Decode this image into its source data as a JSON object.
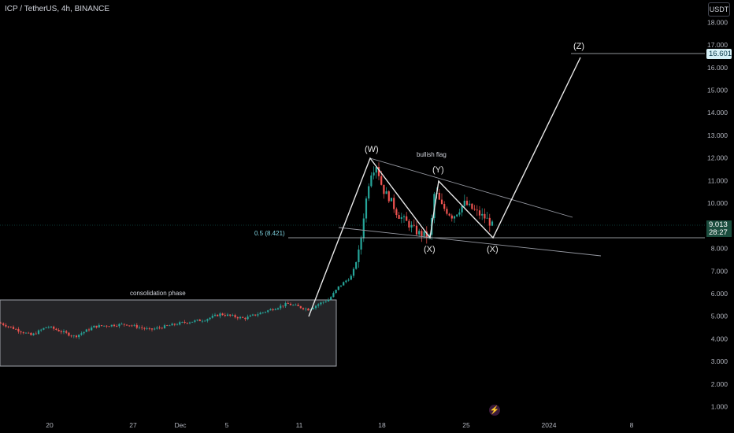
{
  "header": {
    "title": "ICP / TetherUS, 4h, BINANCE",
    "currency_button": "USDT"
  },
  "badges": {
    "target_price": "16.601",
    "last_price": "9.013",
    "countdown": "28:27"
  },
  "colors": {
    "background": "#000000",
    "candle_up": "#26a69a",
    "candle_down": "#ef5350",
    "drawing": "#d1d4dc",
    "fib_label": "#7fd3e0",
    "target_badge": "#d6f0f6",
    "price_badge": "#1b4d3e"
  },
  "chart_data": {
    "type": "candlestick",
    "symbol": "ICP / TetherUS",
    "timeframe": "4h",
    "exchange": "BINANCE",
    "y_ticks": [
      "1.000",
      "2.000",
      "3.000",
      "4.000",
      "5.000",
      "6.000",
      "7.000",
      "8.000",
      "9.000",
      "10.000",
      "11.000",
      "12.000",
      "13.000",
      "14.000",
      "15.000",
      "16.000",
      "17.000",
      "18.000"
    ],
    "x_ticks": [
      "20",
      "27",
      "Dec",
      "5",
      "11",
      "18",
      "25",
      "2024",
      "8"
    ],
    "ylim": [
      0.5,
      18.6
    ],
    "annotations": {
      "consolidation_label": "consolidation phase",
      "bullish_flag_label": "bullish flag",
      "fib_label": "0.5 (8.421)",
      "wave_w": "(W)",
      "wave_x1": "(X)",
      "wave_y": "(Y)",
      "wave_x2": "(X)",
      "wave_z": "(Z)"
    },
    "levels": {
      "fib_level": 8.421,
      "target": 16.601,
      "last_price": 9.013,
      "consolidation_range": [
        2.75,
        5.7
      ]
    },
    "wave_path": [
      {
        "label": "start",
        "price": 5.0
      },
      {
        "label": "(W)",
        "price": 11.95
      },
      {
        "label": "(X)",
        "price": 8.45
      },
      {
        "label": "(Y)",
        "price": 11.0
      },
      {
        "label": "(X)",
        "price": 8.45
      },
      {
        "label": "(Z)",
        "price": 16.5
      }
    ]
  }
}
